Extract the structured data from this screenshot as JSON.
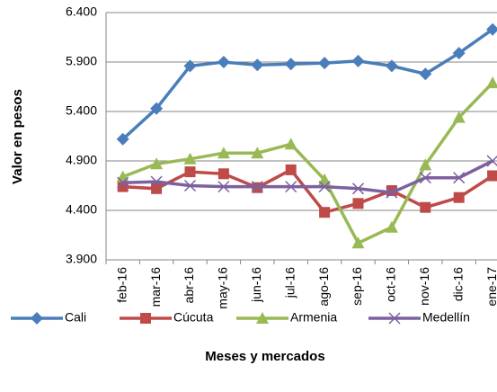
{
  "chart_data": {
    "type": "line",
    "x_label": "Meses y mercados",
    "y_label": "Valor en pesos",
    "categories": [
      "feb-16",
      "mar-16",
      "abr-16",
      "may-16",
      "jun-16",
      "jul-16",
      "ago-16",
      "sep-16",
      "oct-16",
      "nov-16",
      "dic-16",
      "ene-17"
    ],
    "series": [
      {
        "name": "Cali",
        "color": "#4a7ebb",
        "marker": "diamond",
        "values": [
          5120,
          5430,
          5860,
          5900,
          5870,
          5880,
          5890,
          5910,
          5860,
          5780,
          5990,
          6230
        ]
      },
      {
        "name": "Cúcuta",
        "color": "#be4b48",
        "marker": "square",
        "values": [
          4640,
          4620,
          4790,
          4770,
          4630,
          4810,
          4380,
          4470,
          4600,
          4430,
          4530,
          4750
        ]
      },
      {
        "name": "Armenia",
        "color": "#98b954",
        "marker": "triangle",
        "values": [
          4740,
          4870,
          4920,
          4980,
          4980,
          5070,
          4710,
          4070,
          4230,
          4860,
          5340,
          5690
        ]
      },
      {
        "name": "Medellín",
        "color": "#7d60a0",
        "marker": "x",
        "values": [
          4680,
          4690,
          4650,
          4640,
          4640,
          4640,
          4640,
          4620,
          4580,
          4730,
          4730,
          4900
        ]
      }
    ],
    "ylim": [
      3900,
      6400
    ],
    "yticks": [
      {
        "value": 3900,
        "label": "3.900"
      },
      {
        "value": 4400,
        "label": "4.400"
      },
      {
        "value": 4900,
        "label": "4.900"
      },
      {
        "value": 5400,
        "label": "5.400"
      },
      {
        "value": 5900,
        "label": "5.900"
      },
      {
        "value": 6400,
        "label": "6.400"
      }
    ],
    "grid": true,
    "legend": "bottom"
  }
}
